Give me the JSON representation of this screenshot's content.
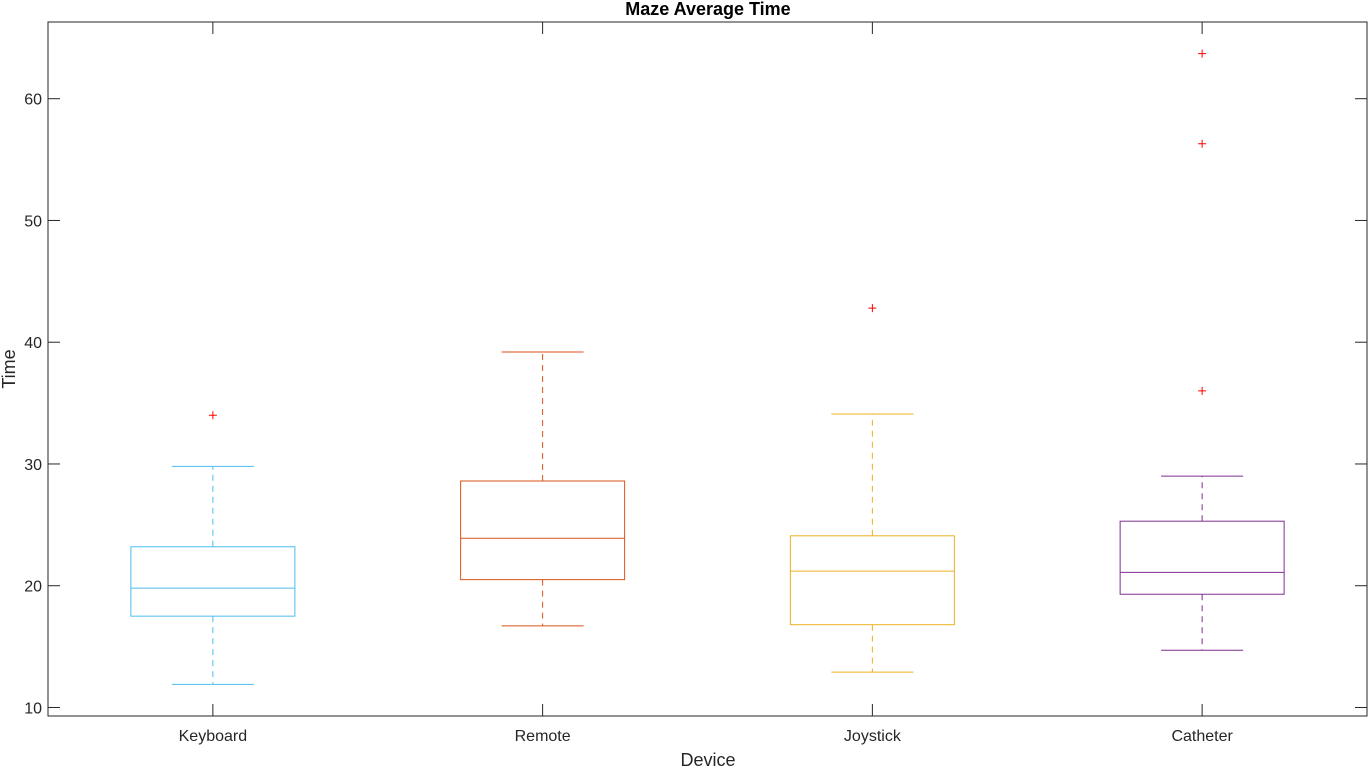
{
  "chart_data": {
    "type": "boxplot",
    "title": "Maze Average Time",
    "xlabel": "Device",
    "ylabel": "Time",
    "ylim": [
      9.3,
      66.3
    ],
    "yticks": [
      10,
      20,
      30,
      40,
      50,
      60
    ],
    "ytick_labels": [
      "10",
      "20",
      "30",
      "40",
      "50",
      "60"
    ],
    "categories": [
      "Keyboard",
      "Remote",
      "Joystick",
      "Catheter"
    ],
    "grid": false,
    "boxes": [
      {
        "category": "Keyboard",
        "whisker_low": 11.9,
        "q1": 17.5,
        "median": 19.8,
        "q3": 23.2,
        "whisker_high": 29.8,
        "outliers": [
          34.0
        ],
        "color": "#4DBEEE"
      },
      {
        "category": "Remote",
        "whisker_low": 16.7,
        "q1": 20.5,
        "median": 23.9,
        "q3": 28.6,
        "whisker_high": 39.2,
        "outliers": [],
        "color": "#D95319"
      },
      {
        "category": "Joystick",
        "whisker_low": 12.9,
        "q1": 16.8,
        "median": 21.2,
        "q3": 24.1,
        "whisker_high": 34.1,
        "outliers": [
          42.8
        ],
        "color": "#EDB120"
      },
      {
        "category": "Catheter",
        "whisker_low": 14.7,
        "q1": 19.3,
        "median": 21.1,
        "q3": 25.3,
        "whisker_high": 29.0,
        "outliers": [
          36.0,
          56.3,
          63.7
        ],
        "color": "#7E2F8E"
      }
    ],
    "outlier_color": "#FF0000"
  }
}
